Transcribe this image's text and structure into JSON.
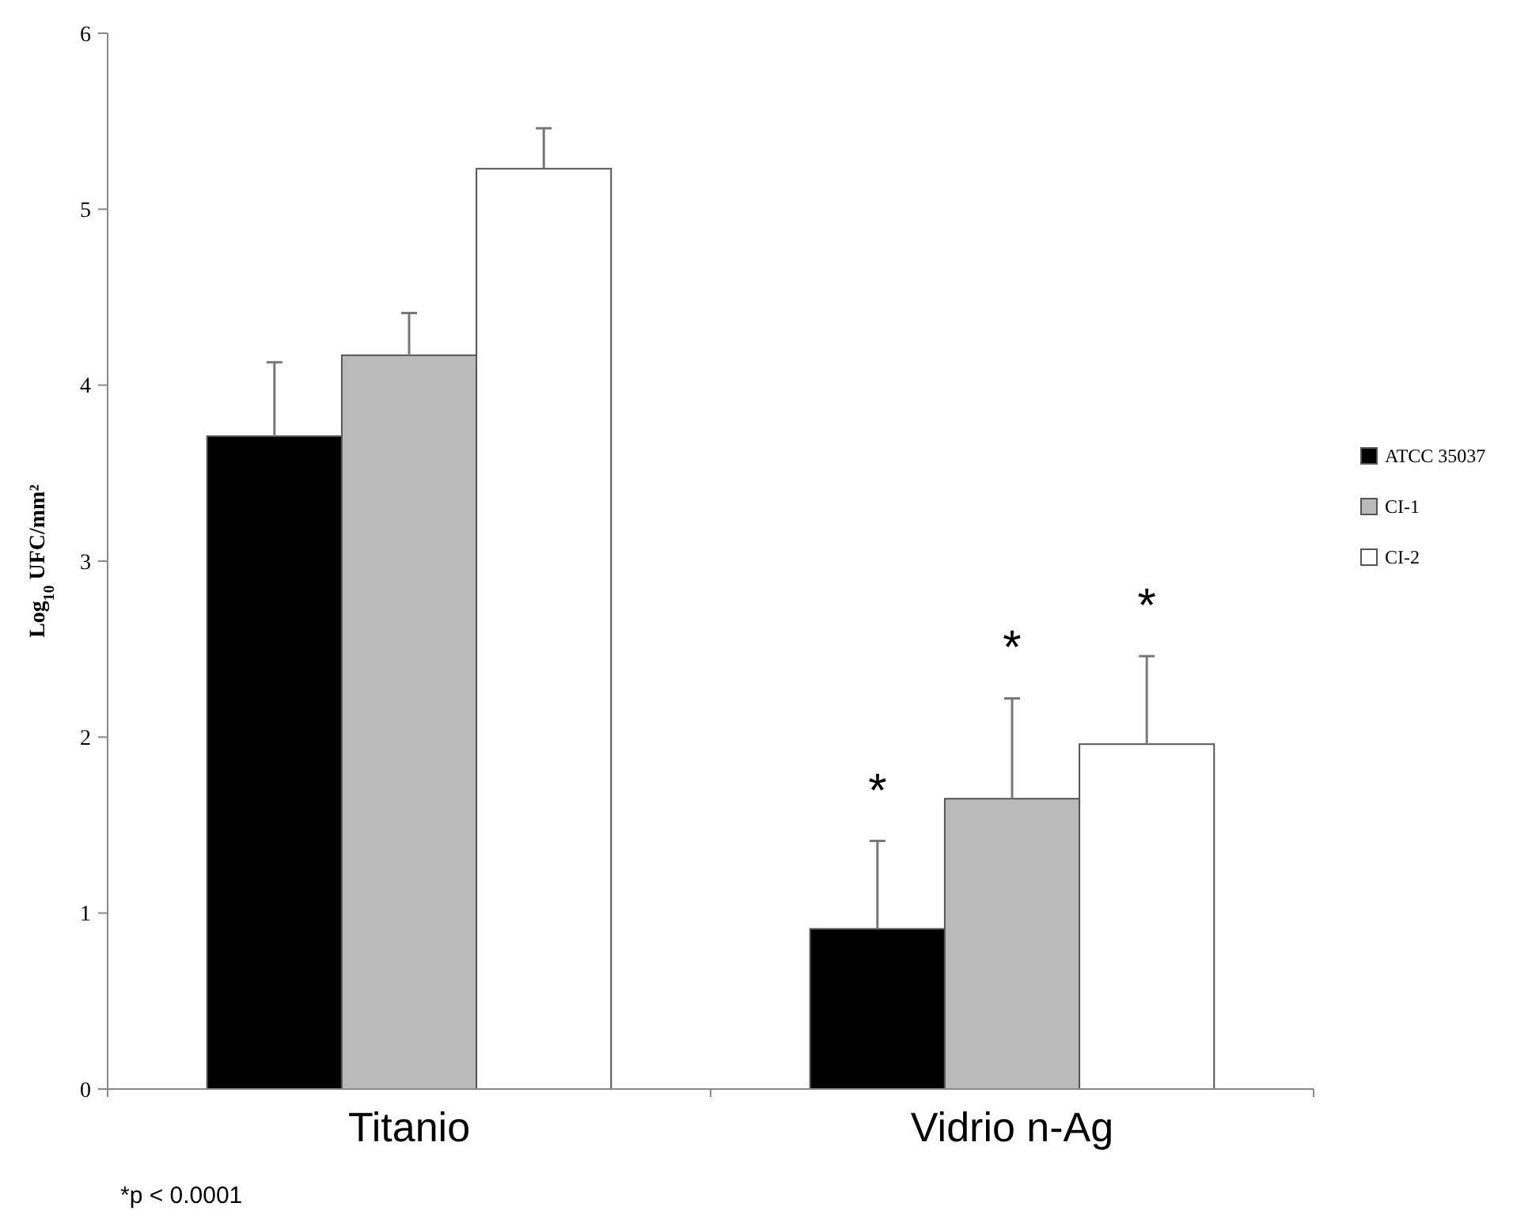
{
  "chart_data": {
    "type": "bar",
    "ylabel": "Log$_{10}$ UFC/mm²",
    "categories": [
      "Titanio",
      "Vidrio n-Ag"
    ],
    "series": [
      {
        "name": "ATCC 35037",
        "color": "#000000",
        "values": [
          3.71,
          0.91
        ],
        "errors": [
          [
            3.71,
            4.13
          ],
          [
            0.91,
            1.41
          ]
        ]
      },
      {
        "name": "CI-1",
        "color": "#bababa",
        "values": [
          4.17,
          1.65
        ],
        "errors": [
          [
            4.17,
            4.41
          ],
          [
            1.65,
            2.22
          ]
        ]
      },
      {
        "name": "CI-2",
        "color": "#ffffff",
        "values": [
          5.23,
          1.96
        ],
        "errors": [
          [
            5.23,
            5.46
          ],
          [
            1.96,
            2.46
          ]
        ]
      }
    ],
    "ylim": [
      0,
      6
    ],
    "yticks": [
      0,
      1,
      2,
      3,
      4,
      5,
      6
    ],
    "legend": "right",
    "grid": false,
    "annotations": [
      "*",
      "*",
      "*",
      "*p < 0.0001"
    ]
  }
}
